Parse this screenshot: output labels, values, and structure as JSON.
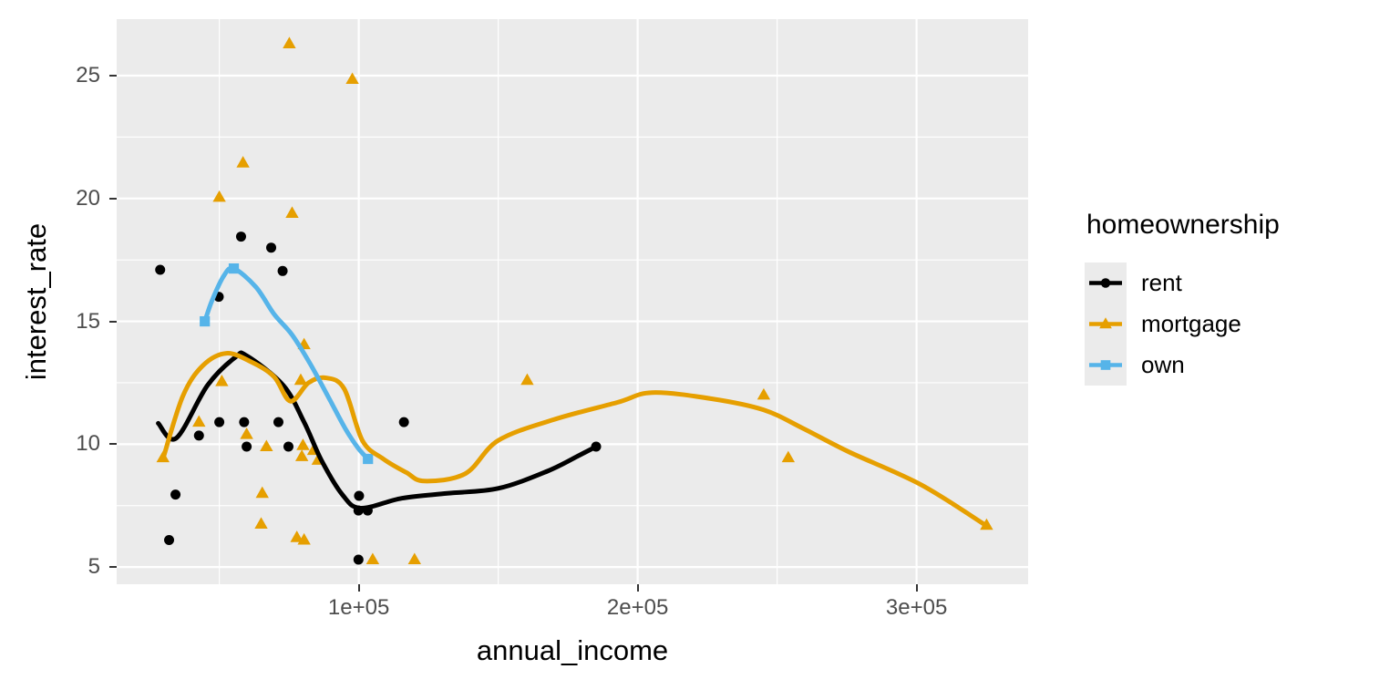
{
  "chart_data": {
    "type": "scatter",
    "title": "",
    "xlabel": "annual_income",
    "ylabel": "interest_rate",
    "x_ticks": [
      {
        "value": 100000,
        "label": "1e+05"
      },
      {
        "value": 200000,
        "label": "2e+05"
      },
      {
        "value": 300000,
        "label": "3e+05"
      }
    ],
    "y_ticks": [
      {
        "value": 5,
        "label": "5"
      },
      {
        "value": 10,
        "label": "10"
      },
      {
        "value": 15,
        "label": "15"
      },
      {
        "value": 20,
        "label": "20"
      },
      {
        "value": 25,
        "label": "25"
      }
    ],
    "x_minor": [
      50000,
      150000,
      250000
    ],
    "y_minor": [
      7.5,
      12.5,
      17.5,
      22.5
    ],
    "x_domain": [
      13200,
      340000
    ],
    "y_domain": [
      4.3,
      27.3
    ],
    "grid": true,
    "panel_bg": "#EBEBEB",
    "grid_color": "#FFFFFF",
    "tick_color": "#333333",
    "tick_text_color": "#4D4D4D",
    "legend": {
      "title": "homeownership",
      "position": "right",
      "key_bg": "#EBEBEB"
    },
    "series": [
      {
        "name": "rent",
        "color": "#000000",
        "marker": "circle",
        "points": [
          [
            28800,
            17.1
          ],
          [
            49800,
            16.0
          ],
          [
            57800,
            18.45
          ],
          [
            68600,
            18.0
          ],
          [
            72700,
            17.05
          ],
          [
            42700,
            10.35
          ],
          [
            50000,
            10.9
          ],
          [
            58900,
            10.9
          ],
          [
            71200,
            10.9
          ],
          [
            116200,
            10.9
          ],
          [
            59800,
            9.9
          ],
          [
            74800,
            9.9
          ],
          [
            34300,
            7.95
          ],
          [
            100100,
            7.9
          ],
          [
            99900,
            7.3
          ],
          [
            103200,
            7.3
          ],
          [
            32000,
            6.1
          ],
          [
            99900,
            5.3
          ],
          [
            185100,
            9.9
          ]
        ],
        "smooth": [
          [
            28100,
            10.85
          ],
          [
            34600,
            10.25
          ],
          [
            45800,
            12.4
          ],
          [
            55900,
            13.55
          ],
          [
            59800,
            13.6
          ],
          [
            72900,
            12.4
          ],
          [
            80400,
            10.9
          ],
          [
            86600,
            9.35
          ],
          [
            94100,
            7.95
          ],
          [
            100700,
            7.4
          ],
          [
            115400,
            7.8
          ],
          [
            131700,
            8.0
          ],
          [
            150000,
            8.2
          ],
          [
            167600,
            8.9
          ],
          [
            179100,
            9.55
          ],
          [
            185100,
            9.9
          ]
        ]
      },
      {
        "name": "mortgage",
        "color": "#E69F00",
        "marker": "triangle",
        "points": [
          [
            75100,
            26.3
          ],
          [
            97700,
            24.85
          ],
          [
            58500,
            21.45
          ],
          [
            50000,
            20.05
          ],
          [
            76100,
            19.4
          ],
          [
            80400,
            14.05
          ],
          [
            50900,
            12.55
          ],
          [
            79200,
            12.6
          ],
          [
            42700,
            10.9
          ],
          [
            59800,
            10.4
          ],
          [
            66900,
            9.9
          ],
          [
            80000,
            9.95
          ],
          [
            83800,
            9.75
          ],
          [
            79600,
            9.5
          ],
          [
            85400,
            9.35
          ],
          [
            29800,
            9.45
          ],
          [
            65400,
            8.0
          ],
          [
            65000,
            6.75
          ],
          [
            77800,
            6.2
          ],
          [
            80400,
            6.1
          ],
          [
            105000,
            5.3
          ],
          [
            120000,
            5.3
          ],
          [
            160400,
            12.6
          ],
          [
            245200,
            12.0
          ],
          [
            254000,
            9.45
          ],
          [
            325100,
            6.7
          ]
        ],
        "smooth": [
          [
            29800,
            9.4
          ],
          [
            36900,
            11.95
          ],
          [
            44100,
            13.2
          ],
          [
            52600,
            13.7
          ],
          [
            61400,
            13.35
          ],
          [
            69600,
            12.75
          ],
          [
            75500,
            11.75
          ],
          [
            82000,
            12.5
          ],
          [
            88200,
            12.7
          ],
          [
            94800,
            12.25
          ],
          [
            101300,
            10.15
          ],
          [
            108800,
            9.4
          ],
          [
            117000,
            8.85
          ],
          [
            123500,
            8.5
          ],
          [
            138200,
            8.8
          ],
          [
            150000,
            10.15
          ],
          [
            169900,
            11.0
          ],
          [
            192700,
            11.7
          ],
          [
            205200,
            12.1
          ],
          [
            226500,
            11.85
          ],
          [
            245100,
            11.4
          ],
          [
            259200,
            10.65
          ],
          [
            275500,
            9.7
          ],
          [
            301600,
            8.35
          ],
          [
            324800,
            6.7
          ]
        ]
      },
      {
        "name": "own",
        "color": "#56B4E9",
        "marker": "square",
        "points": [
          [
            44800,
            15.0
          ],
          [
            55200,
            17.15
          ],
          [
            103300,
            9.4
          ]
        ],
        "smooth": [
          [
            44800,
            15.0
          ],
          [
            47400,
            15.85
          ],
          [
            51600,
            16.85
          ],
          [
            55200,
            17.15
          ],
          [
            63100,
            16.4
          ],
          [
            69600,
            15.3
          ],
          [
            76100,
            14.45
          ],
          [
            82700,
            13.25
          ],
          [
            89200,
            11.9
          ],
          [
            95100,
            10.65
          ],
          [
            99700,
            9.85
          ],
          [
            103300,
            9.4
          ]
        ]
      }
    ]
  }
}
